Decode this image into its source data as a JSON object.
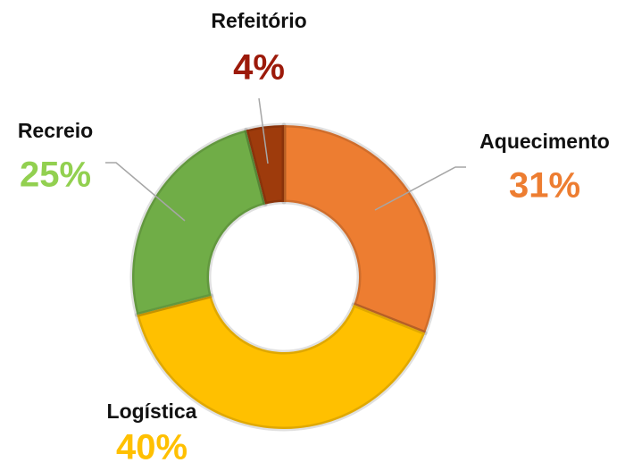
{
  "chart_data": {
    "type": "donut",
    "categories": [
      "Aquecimento",
      "Logística",
      "Recreio",
      "Refeitório"
    ],
    "values": [
      31,
      40,
      25,
      4
    ],
    "value_labels": [
      "31%",
      "40%",
      "25%",
      "4%"
    ],
    "colors": [
      "#ed7d31",
      "#ffc000",
      "#70ad47",
      "#9e3b0c"
    ],
    "label_colors": [
      "#ed7d31",
      "#ffc000",
      "#92d050",
      "#9c1a0a"
    ]
  }
}
